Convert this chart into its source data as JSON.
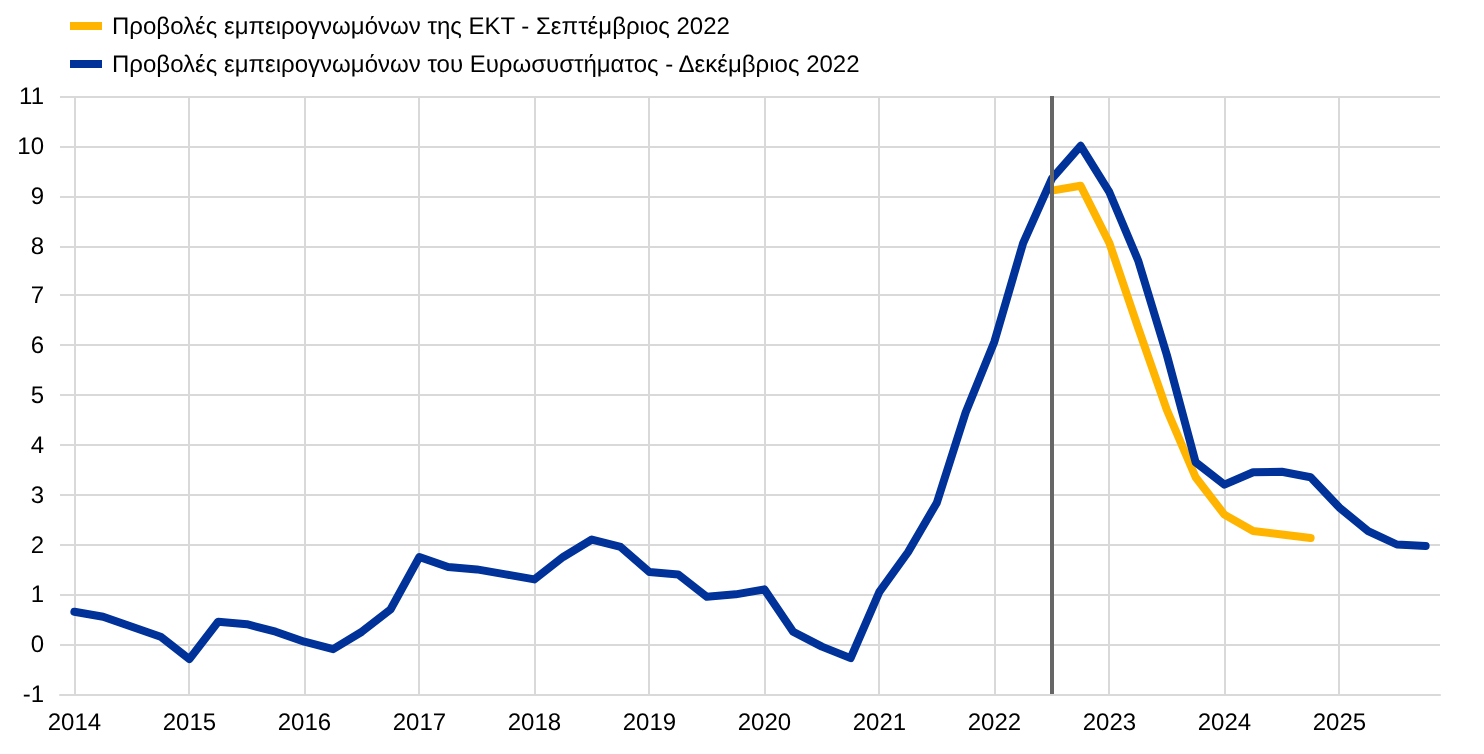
{
  "chart_data": {
    "type": "line",
    "x": [
      2014,
      2014.25,
      2014.5,
      2014.75,
      2015,
      2015.25,
      2015.5,
      2015.75,
      2016,
      2016.25,
      2016.5,
      2016.75,
      2017,
      2017.25,
      2017.5,
      2017.75,
      2018,
      2018.25,
      2018.5,
      2018.75,
      2019,
      2019.25,
      2019.5,
      2019.75,
      2020,
      2020.25,
      2020.5,
      2020.75,
      2021,
      2021.25,
      2021.5,
      2021.75,
      2022,
      2022.25,
      2022.5,
      2022.75,
      2023,
      2023.25,
      2023.5,
      2023.75,
      2024,
      2024.25,
      2024.5,
      2024.75,
      2025,
      2025.25,
      2025.5,
      2025.75
    ],
    "series": [
      {
        "name": "Προβολές εμπειρογνωμόνων της ΕΚΤ - Σεπτέμβριος 2022",
        "color": "#ffb400",
        "values": [
          null,
          null,
          null,
          null,
          null,
          null,
          null,
          null,
          null,
          null,
          null,
          null,
          null,
          null,
          null,
          null,
          null,
          null,
          null,
          null,
          null,
          null,
          null,
          null,
          null,
          null,
          null,
          null,
          null,
          null,
          null,
          null,
          null,
          null,
          9.1,
          9.2,
          8.05,
          6.35,
          4.7,
          3.35,
          2.6,
          2.27,
          2.2,
          2.13,
          null,
          null,
          null,
          null
        ]
      },
      {
        "name": "Προβολές εμπειρογνωμόνων του Ευρωσυστήματος - Δεκέμβριος 2022",
        "color": "#003299",
        "values": [
          0.65,
          0.55,
          0.35,
          0.15,
          -0.3,
          0.45,
          0.4,
          0.25,
          0.05,
          -0.1,
          0.25,
          0.7,
          1.75,
          1.55,
          1.5,
          1.4,
          1.3,
          1.75,
          2.1,
          1.95,
          1.45,
          1.4,
          0.95,
          1.0,
          1.1,
          0.25,
          -0.05,
          -0.28,
          1.05,
          1.85,
          2.84,
          4.65,
          6.07,
          8.05,
          9.34,
          10.0,
          9.07,
          7.7,
          5.8,
          3.65,
          3.2,
          3.45,
          3.46,
          3.35,
          2.74,
          2.27,
          2.0,
          1.97
        ]
      }
    ],
    "xlim": [
      2013.875,
      2025.875
    ],
    "xticks": [
      2014,
      2015,
      2016,
      2017,
      2018,
      2019,
      2020,
      2021,
      2022,
      2023,
      2024,
      2025
    ],
    "ylim": [
      -1,
      11
    ],
    "yticks": [
      -1,
      0,
      1,
      2,
      3,
      4,
      5,
      6,
      7,
      8,
      9,
      10,
      11
    ],
    "ref_lines": [
      {
        "axis": "x",
        "value": 2022.5,
        "color": "#666666"
      }
    ],
    "grid": true,
    "legend": "top left",
    "marker": "none",
    "line_style": "solid"
  }
}
